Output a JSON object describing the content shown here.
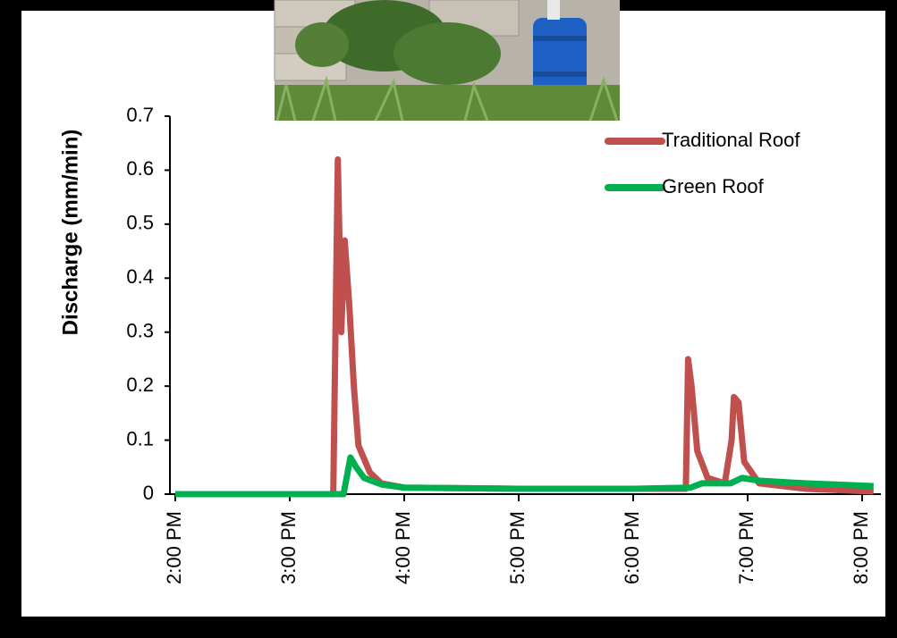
{
  "chart_data": {
    "type": "line",
    "y_label": "Discharge (mm/min)",
    "xlim": [
      14,
      20.12
    ],
    "xticks": [
      {
        "value": 14,
        "label": "2:00 PM"
      },
      {
        "value": 15,
        "label": "3:00 PM"
      },
      {
        "value": 16,
        "label": "4:00 PM"
      },
      {
        "value": 17,
        "label": "5:00 PM"
      },
      {
        "value": 18,
        "label": "6:00 PM"
      },
      {
        "value": 19,
        "label": "7:00 PM"
      },
      {
        "value": 20,
        "label": "8:00 PM"
      }
    ],
    "ylim": [
      0,
      0.7
    ],
    "yticks": [
      0,
      0.1,
      0.2,
      0.3,
      0.4,
      0.5,
      0.6,
      0.7
    ],
    "legend": "top-right",
    "series": [
      {
        "name": "Traditional Roof",
        "color": "#c0504d",
        "x": [
          14,
          15.38,
          15.42,
          15.45,
          15.48,
          15.52,
          15.56,
          15.6,
          15.7,
          15.8,
          16,
          17,
          18,
          18.46,
          18.48,
          18.51,
          18.56,
          18.65,
          18.8,
          18.86,
          18.88,
          18.92,
          18.97,
          19.1,
          19.5,
          20.1
        ],
        "values": [
          0,
          0,
          0.62,
          0.3,
          0.47,
          0.35,
          0.2,
          0.09,
          0.04,
          0.02,
          0.012,
          0.01,
          0.01,
          0.01,
          0.25,
          0.2,
          0.08,
          0.03,
          0.02,
          0.1,
          0.18,
          0.17,
          0.06,
          0.02,
          0.01,
          0.005
        ]
      },
      {
        "name": "Green Roof",
        "color": "#00b050",
        "x": [
          14,
          15.47,
          15.53,
          15.58,
          15.65,
          15.8,
          16,
          17,
          18,
          18.5,
          18.6,
          18.85,
          18.95,
          19.1,
          19.5,
          20.1
        ],
        "values": [
          0,
          0,
          0.068,
          0.05,
          0.03,
          0.018,
          0.012,
          0.01,
          0.01,
          0.012,
          0.02,
          0.02,
          0.03,
          0.025,
          0.02,
          0.015
        ]
      }
    ]
  }
}
